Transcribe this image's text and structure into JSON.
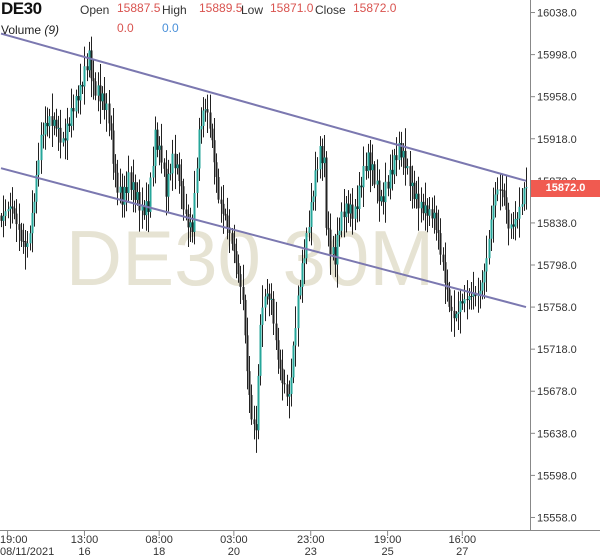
{
  "header": {
    "symbol": "DE30",
    "open_label": "Open",
    "open_value": "15887.5",
    "high_label": "High",
    "high_value": "15889.5",
    "low_label": "Low",
    "low_value": "15871.0",
    "close_label": "Close",
    "close_value": "15872.0",
    "volume_label": "Volume",
    "volume_period": "(9)",
    "volume_value_1": "0.0",
    "volume_value_2": "0.0"
  },
  "watermark": "DE30 30M",
  "last_price_tag": "15872.0",
  "colors": {
    "up": "#26a69a",
    "down": "#222222",
    "channel": "#7b78b0",
    "price_tag": "#f05a50",
    "watermark": "#e6e3d3"
  },
  "chart_data": {
    "type": "candlestick",
    "instrument": "DE30",
    "timeframe": "30M",
    "ylim": [
      15548,
      16048
    ],
    "y_ticks": [
      "16038.0",
      "15998.0",
      "15958.0",
      "15918.0",
      "15878.0",
      "15838.0",
      "15798.0",
      "15758.0",
      "15718.0",
      "15678.0",
      "15638.0",
      "15598.0",
      "15558.0"
    ],
    "x_ticks": [
      {
        "time": "19:00",
        "date": "08/11/2021"
      },
      {
        "time": "13:00",
        "date": "16"
      },
      {
        "time": "08:00",
        "date": "18"
      },
      {
        "time": "03:00",
        "date": "20"
      },
      {
        "time": "23:00",
        "date": "23"
      },
      {
        "time": "19:00",
        "date": "25"
      },
      {
        "time": "16:00",
        "date": "27"
      }
    ],
    "last_close": 15872.0,
    "anchors": [
      [
        0,
        15840
      ],
      [
        5,
        15845
      ],
      [
        9,
        15828
      ],
      [
        12,
        15825
      ],
      [
        15,
        15860
      ],
      [
        18,
        15910
      ],
      [
        22,
        15935
      ],
      [
        25,
        15940
      ],
      [
        28,
        15920
      ],
      [
        31,
        15930
      ],
      [
        34,
        15945
      ],
      [
        36,
        15960
      ],
      [
        38,
        15985
      ],
      [
        40,
        16005
      ],
      [
        42,
        15975
      ],
      [
        44,
        15965
      ],
      [
        46,
        15950
      ],
      [
        49,
        15930
      ],
      [
        52,
        15880
      ],
      [
        55,
        15870
      ],
      [
        58,
        15885
      ],
      [
        61,
        15860
      ],
      [
        64,
        15840
      ],
      [
        67,
        15855
      ],
      [
        70,
        15930
      ],
      [
        73,
        15905
      ],
      [
        75,
        15865
      ],
      [
        78,
        15890
      ],
      [
        81,
        15880
      ],
      [
        84,
        15850
      ],
      [
        87,
        15840
      ],
      [
        90,
        15920
      ],
      [
        93,
        15940
      ],
      [
        95,
        15925
      ],
      [
        97,
        15900
      ],
      [
        99,
        15870
      ],
      [
        102,
        15850
      ],
      [
        105,
        15815
      ],
      [
        108,
        15780
      ],
      [
        110,
        15760
      ],
      [
        112,
        15700
      ],
      [
        114,
        15660
      ],
      [
        116,
        15650
      ],
      [
        118,
        15745
      ],
      [
        120,
        15765
      ],
      [
        123,
        15755
      ],
      [
        125,
        15720
      ],
      [
        127,
        15700
      ],
      [
        129,
        15690
      ],
      [
        131,
        15680
      ],
      [
        133,
        15720
      ],
      [
        135,
        15760
      ],
      [
        138,
        15800
      ],
      [
        140,
        15835
      ],
      [
        143,
        15890
      ],
      [
        145,
        15915
      ],
      [
        147,
        15900
      ],
      [
        148,
        15840
      ],
      [
        150,
        15808
      ],
      [
        152,
        15795
      ],
      [
        154,
        15830
      ],
      [
        156,
        15850
      ],
      [
        158,
        15860
      ],
      [
        161,
        15855
      ],
      [
        164,
        15875
      ],
      [
        167,
        15890
      ],
      [
        170,
        15878
      ],
      [
        173,
        15865
      ],
      [
        175,
        15880
      ],
      [
        178,
        15890
      ],
      [
        181,
        15900
      ],
      [
        184,
        15890
      ],
      [
        186,
        15880
      ],
      [
        189,
        15870
      ],
      [
        192,
        15855
      ],
      [
        195,
        15840
      ],
      [
        197,
        15835
      ],
      [
        199,
        15820
      ],
      [
        201,
        15800
      ],
      [
        203,
        15780
      ],
      [
        205,
        15760
      ],
      [
        207,
        15752
      ],
      [
        209,
        15757
      ],
      [
        211,
        15755
      ],
      [
        213,
        15760
      ],
      [
        215,
        15770
      ],
      [
        217,
        15775
      ],
      [
        219,
        15790
      ],
      [
        221,
        15810
      ],
      [
        223,
        15840
      ],
      [
        225,
        15858
      ],
      [
        227,
        15862
      ],
      [
        229,
        15860
      ],
      [
        231,
        15838
      ],
      [
        233,
        15845
      ],
      [
        235,
        15852
      ],
      [
        237,
        15860
      ],
      [
        239,
        15872
      ]
    ],
    "channel_upper": {
      "start": {
        "index": 0,
        "price": 16018
      },
      "end": {
        "index": 239,
        "price": 15878
      }
    },
    "channel_lower": {
      "start": {
        "index": 0,
        "price": 15890
      },
      "end": {
        "index": 239,
        "price": 15758
      }
    }
  }
}
